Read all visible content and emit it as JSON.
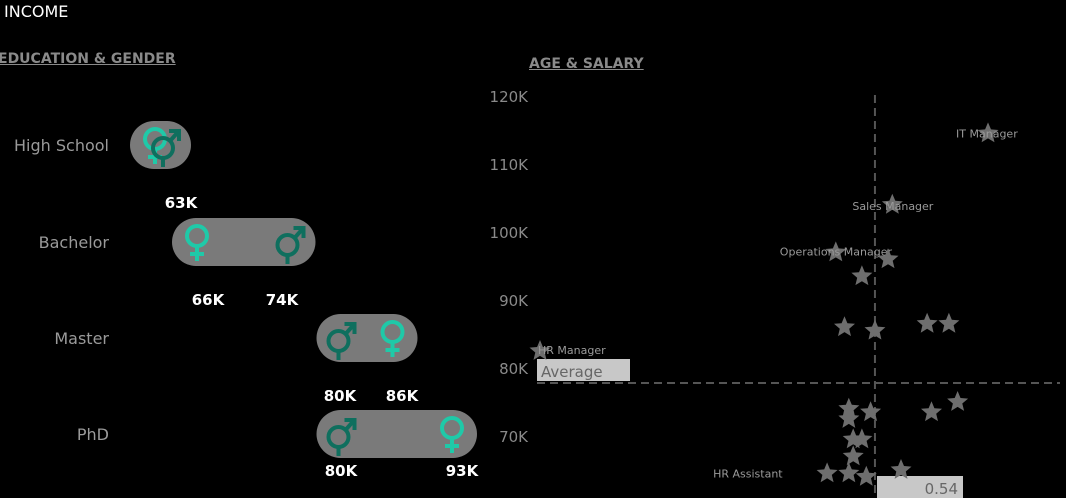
{
  "title": "INCOME",
  "education_section": {
    "title": "EDUCATION & GENDER"
  },
  "age_section": {
    "title": "AGE & SALARY",
    "average_label": "Average",
    "average_value_partial": "0.54"
  },
  "colors": {
    "female": "#1fc9a8",
    "male": "#0f6f5e",
    "pill": "#7a7a7a",
    "star": "#6e6e6e",
    "background": "#000000"
  },
  "icons": {
    "female": "female-icon",
    "male": "male-icon",
    "point": "star-icon"
  },
  "chart_data": [
    {
      "type": "dumbbell",
      "title": "EDUCATION & GENDER",
      "categories": [
        "High School",
        "Bachelor",
        "Master",
        "PhD"
      ],
      "series": [
        {
          "name": "female",
          "values": [
            null,
            63,
            86,
            93
          ]
        },
        {
          "name": "male",
          "values": [
            null,
            74,
            80,
            80
          ]
        }
      ],
      "value_labels": [
        {
          "category": "High School",
          "labels": []
        },
        {
          "category": "Bachelor",
          "labels": [
            "63K",
            "66K",
            "74K"
          ]
        },
        {
          "category": "Master",
          "labels": [
            "80K",
            "86K"
          ]
        },
        {
          "category": "PhD",
          "labels": [
            "80K",
            "93K"
          ]
        }
      ]
    },
    {
      "type": "scatter",
      "title": "AGE & SALARY",
      "ylim": [
        65,
        123
      ],
      "yticks": [
        "70K",
        "80K",
        "90K",
        "100K",
        "110K",
        "120K"
      ],
      "ytick_values": [
        70,
        80,
        90,
        100,
        110,
        120
      ],
      "x_average": 38.5,
      "y_average": 77.8,
      "points": [
        {
          "x": 51.5,
          "y": 114.5,
          "label": "IT Manager"
        },
        {
          "x": 40.5,
          "y": 104,
          "label": "Sales Manager"
        },
        {
          "x": 34,
          "y": 97,
          "label": "Operations Manager"
        },
        {
          "x": 40,
          "y": 96,
          "label": ""
        },
        {
          "x": 37,
          "y": 93.5,
          "label": ""
        },
        {
          "x": 35,
          "y": 86,
          "label": ""
        },
        {
          "x": 38.5,
          "y": 85.5,
          "label": ""
        },
        {
          "x": 44.5,
          "y": 86.5,
          "label": ""
        },
        {
          "x": 47,
          "y": 86.5,
          "label": ""
        },
        {
          "x": 0,
          "y": 82.5,
          "label": "HR Manager"
        },
        {
          "x": 48,
          "y": 75,
          "label": ""
        },
        {
          "x": 45,
          "y": 73.5,
          "label": ""
        },
        {
          "x": 35.5,
          "y": 74,
          "label": ""
        },
        {
          "x": 38,
          "y": 73.5,
          "label": ""
        },
        {
          "x": 35.5,
          "y": 72.5,
          "label": ""
        },
        {
          "x": 36,
          "y": 69.5,
          "label": ""
        },
        {
          "x": 37,
          "y": 69.5,
          "label": ""
        },
        {
          "x": 36,
          "y": 67,
          "label": ""
        },
        {
          "x": 33,
          "y": 64.5,
          "label": "HR Assistant"
        },
        {
          "x": 35.5,
          "y": 64.5,
          "label": ""
        },
        {
          "x": 37.5,
          "y": 64,
          "label": ""
        },
        {
          "x": 41.5,
          "y": 65,
          "label": ""
        }
      ]
    }
  ]
}
